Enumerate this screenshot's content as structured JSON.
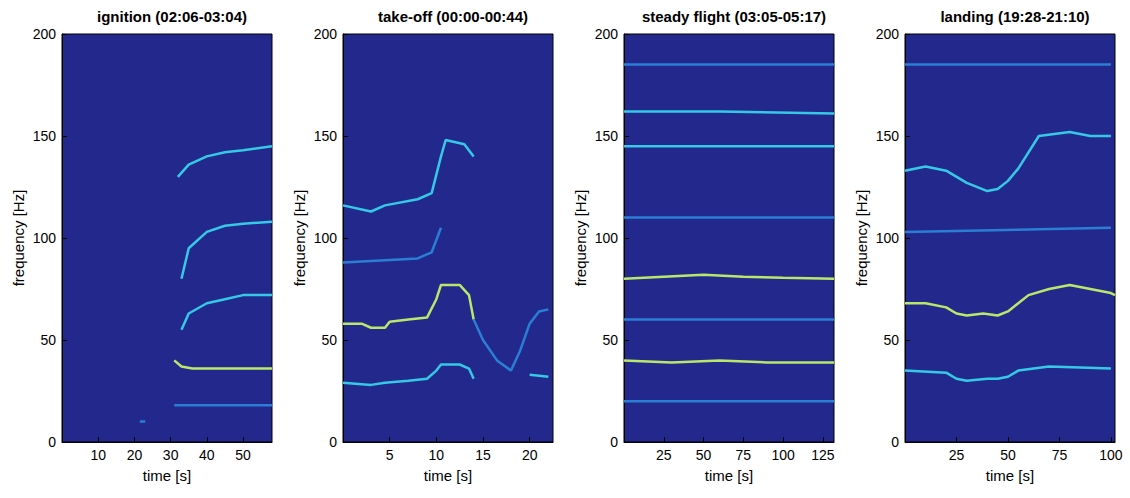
{
  "chart_data": [
    {
      "type": "line",
      "title": "ignition (02:06-03:04)",
      "x_label": "time [s]",
      "y_label": "frequency [Hz]",
      "xlim": [
        0,
        58
      ],
      "xticks": [
        10,
        20,
        30,
        40,
        50
      ],
      "ylim": [
        0,
        200
      ],
      "yticks": [
        0,
        50,
        100,
        150,
        200
      ],
      "grid": false,
      "series": [
        {
          "color": "#2a7fd4",
          "x": [
            21.5,
            23
          ],
          "values": [
            10,
            10
          ]
        },
        {
          "color": "#2a7fd4",
          "x": [
            31,
            40,
            58
          ],
          "values": [
            18,
            18,
            18
          ]
        },
        {
          "color": "#b8e86a",
          "x": [
            31,
            33,
            36,
            40,
            50,
            58
          ],
          "values": [
            40,
            37,
            36,
            36,
            36,
            36
          ]
        },
        {
          "color": "#35c9e6",
          "x": [
            33,
            35,
            40,
            45,
            50,
            58
          ],
          "values": [
            55,
            63,
            68,
            70,
            72,
            72
          ]
        },
        {
          "color": "#35c9e6",
          "x": [
            33,
            35,
            40,
            45,
            50,
            58
          ],
          "values": [
            80,
            95,
            103,
            106,
            107,
            108
          ]
        },
        {
          "color": "#35c9e6",
          "x": [
            32,
            35,
            40,
            45,
            50,
            58
          ],
          "values": [
            130,
            136,
            140,
            142,
            143,
            145
          ]
        }
      ]
    },
    {
      "type": "line",
      "title": "take-off (00:00-00:44)",
      "x_label": "time [s]",
      "y_label": "frequency [Hz]",
      "xlim": [
        0,
        22.5
      ],
      "xticks": [
        5,
        10,
        15,
        20
      ],
      "ylim": [
        0,
        200
      ],
      "yticks": [
        0,
        50,
        100,
        150,
        200
      ],
      "grid": false,
      "series": [
        {
          "color": "#35c9e6",
          "x": [
            0,
            3,
            4.5,
            7,
            9,
            10,
            10.5,
            12.5,
            13.5,
            14
          ],
          "values": [
            29,
            28,
            29,
            30,
            31,
            35,
            38,
            38,
            36,
            31
          ]
        },
        {
          "color": "#35c9e6",
          "x": [
            20,
            22
          ],
          "values": [
            33,
            32
          ]
        },
        {
          "color": "#b8e86a",
          "x": [
            0,
            2,
            3,
            4.5,
            5,
            7,
            9,
            10,
            10.5,
            12.5,
            13.5,
            14
          ],
          "values": [
            58,
            58,
            56,
            56,
            59,
            60,
            61,
            70,
            77,
            77,
            72,
            60
          ]
        },
        {
          "color": "#2a7fd4",
          "x": [
            14,
            15,
            16.5,
            18,
            19,
            20,
            21,
            22
          ],
          "values": [
            60,
            50,
            40,
            35,
            45,
            58,
            64,
            65
          ]
        },
        {
          "color": "#2a7fd4",
          "x": [
            0,
            8,
            9.5,
            10.5
          ],
          "values": [
            88,
            90,
            93,
            105
          ]
        },
        {
          "color": "#35c9e6",
          "x": [
            0,
            3,
            4.5,
            8,
            9.5,
            10.5,
            11,
            13,
            14
          ],
          "values": [
            116,
            113,
            116,
            119,
            122,
            140,
            148,
            146,
            140
          ]
        }
      ]
    },
    {
      "type": "line",
      "title": "steady flight (03:05-05:17)",
      "x_label": "time [s]",
      "y_label": "frequency [Hz]",
      "xlim": [
        0,
        132
      ],
      "xticks": [
        25,
        50,
        75,
        100,
        125
      ],
      "ylim": [
        0,
        200
      ],
      "yticks": [
        0,
        50,
        100,
        150,
        200
      ],
      "grid": false,
      "series": [
        {
          "color": "#2a7fd4",
          "x": [
            0,
            132
          ],
          "values": [
            20,
            20
          ]
        },
        {
          "color": "#b8e86a",
          "x": [
            0,
            30,
            60,
            90,
            132
          ],
          "values": [
            40,
            39,
            40,
            39,
            39
          ]
        },
        {
          "color": "#2a7fd4",
          "x": [
            0,
            132
          ],
          "values": [
            60,
            60
          ]
        },
        {
          "color": "#b8e86a",
          "x": [
            0,
            25,
            50,
            75,
            100,
            132
          ],
          "values": [
            80,
            81,
            82,
            81,
            80.5,
            80
          ]
        },
        {
          "color": "#2a7fd4",
          "x": [
            0,
            132
          ],
          "values": [
            110,
            110
          ]
        },
        {
          "color": "#35c9e6",
          "x": [
            0,
            132
          ],
          "values": [
            145,
            145
          ]
        },
        {
          "color": "#35c9e6",
          "x": [
            0,
            60,
            132
          ],
          "values": [
            162,
            162,
            161
          ]
        },
        {
          "color": "#2a7fd4",
          "x": [
            0,
            132
          ],
          "values": [
            185,
            185
          ]
        }
      ]
    },
    {
      "type": "line",
      "title": "landing (19:28-21:10)",
      "x_label": "time [s]",
      "y_label": "frequency [Hz]",
      "xlim": [
        0,
        102
      ],
      "xticks": [
        25,
        50,
        75,
        100
      ],
      "ylim": [
        0,
        200
      ],
      "yticks": [
        0,
        50,
        100,
        150,
        200
      ],
      "grid": false,
      "series": [
        {
          "color": "#35c9e6",
          "x": [
            0,
            20,
            25,
            30,
            40,
            45,
            50,
            55,
            70,
            100
          ],
          "values": [
            35,
            34,
            31,
            30,
            31,
            31,
            32,
            35,
            37,
            36
          ]
        },
        {
          "color": "#b8e86a",
          "x": [
            0,
            10,
            20,
            25,
            30,
            38,
            45,
            50,
            55,
            60,
            70,
            80,
            90,
            100,
            102
          ],
          "values": [
            68,
            68,
            66,
            63,
            62,
            63,
            62,
            64,
            68,
            72,
            75,
            77,
            75,
            73,
            72
          ]
        },
        {
          "color": "#2a7fd4",
          "x": [
            0,
            100
          ],
          "values": [
            103,
            105
          ]
        },
        {
          "color": "#35c9e6",
          "x": [
            0,
            10,
            20,
            30,
            40,
            45,
            50,
            55,
            65,
            80,
            90,
            100
          ],
          "values": [
            133,
            135,
            133,
            127,
            123,
            124,
            128,
            134,
            150,
            152,
            150,
            150
          ]
        },
        {
          "color": "#2a7fd4",
          "x": [
            0,
            100
          ],
          "values": [
            185,
            185
          ]
        }
      ]
    }
  ]
}
